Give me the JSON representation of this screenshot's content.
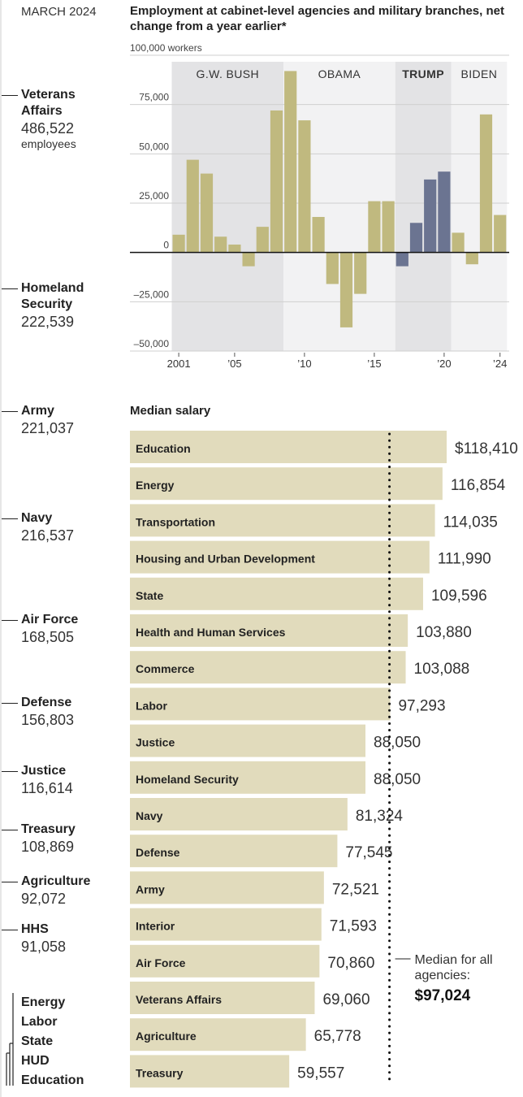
{
  "date_label": "MARCH 2024",
  "left_list": {
    "agencies": [
      {
        "name": "Veterans Affairs",
        "count": "486,522",
        "unit": "employees"
      },
      {
        "name": "Homeland Security",
        "count": "222,539"
      },
      {
        "name": "Army",
        "count": "221,037"
      },
      {
        "name": "Navy",
        "count": "216,537"
      },
      {
        "name": "Air Force",
        "count": "168,505"
      },
      {
        "name": "Defense",
        "count": "156,803"
      },
      {
        "name": "Justice",
        "count": "116,614"
      },
      {
        "name": "Treasury",
        "count": "108,869"
      },
      {
        "name": "Agriculture",
        "count": "92,072"
      },
      {
        "name": "HHS",
        "count": "91,058"
      }
    ],
    "small": [
      "Energy",
      "Labor",
      "State",
      "HUD",
      "Education"
    ]
  },
  "chart_data": [
    {
      "type": "bar",
      "title": "Employment at cabinet-level agencies and military branches, net change from a year earlier*",
      "ylabel": "100,000 workers",
      "ylim": [
        -50000,
        100000
      ],
      "yticks": [
        {
          "value": 100000,
          "label": "100,000 workers"
        },
        {
          "value": 75000,
          "label": "75,000"
        },
        {
          "value": 50000,
          "label": "50,000"
        },
        {
          "value": 25000,
          "label": "25,000"
        },
        {
          "value": 0,
          "label": "0"
        },
        {
          "value": -25000,
          "label": "–25,000"
        },
        {
          "value": -50000,
          "label": "–50,000"
        }
      ],
      "xlim": [
        2000.5,
        2024.5
      ],
      "xticks": [
        {
          "value": 2001,
          "label": "2001"
        },
        {
          "value": 2005,
          "label": "’05"
        },
        {
          "value": 2010,
          "label": "’10"
        },
        {
          "value": 2015,
          "label": "’15"
        },
        {
          "value": 2020,
          "label": "’20"
        },
        {
          "value": 2024,
          "label": "’24"
        }
      ],
      "categories": [
        2001,
        2002,
        2003,
        2004,
        2005,
        2006,
        2007,
        2008,
        2009,
        2010,
        2011,
        2012,
        2013,
        2014,
        2015,
        2016,
        2017,
        2018,
        2019,
        2020,
        2021,
        2022,
        2023,
        2024
      ],
      "values": [
        9000,
        47000,
        40000,
        8000,
        4000,
        -7000,
        13000,
        72000,
        92000,
        67000,
        18000,
        -16000,
        -38000,
        -21000,
        26000,
        26000,
        -7000,
        15000,
        37000,
        41000,
        10000,
        -6000,
        70000,
        19000
      ],
      "eras": [
        {
          "label": "G.W. BUSH",
          "start": 2001,
          "end": 2008,
          "shade": "#e3e3e5",
          "bold": false
        },
        {
          "label": "OBAMA",
          "start": 2009,
          "end": 2016,
          "shade": "#f2f2f3",
          "bold": false
        },
        {
          "label": "TRUMP",
          "start": 2017,
          "end": 2020,
          "shade": "#e3e3e5",
          "bold": true
        },
        {
          "label": "BIDEN",
          "start": 2021,
          "end": 2024,
          "shade": "#f2f2f3",
          "bold": false
        }
      ],
      "colors": {
        "bar": "#c0b97f",
        "bar_highlight": "#6b7491"
      }
    },
    {
      "type": "bar",
      "orientation": "horizontal",
      "title": "Median salary",
      "categories": [
        "Education",
        "Energy",
        "Transportation",
        "Housing and Urban Development",
        "State",
        "Health and Human Services",
        "Commerce",
        "Labor",
        "Justice",
        "Homeland Security",
        "Navy",
        "Defense",
        "Army",
        "Interior",
        "Air Force",
        "Veterans Affairs",
        "Agriculture",
        "Treasury"
      ],
      "values": [
        118410,
        116854,
        114035,
        111990,
        109596,
        103880,
        103088,
        97293,
        88050,
        88050,
        81324,
        77545,
        72521,
        71593,
        70860,
        69060,
        65778,
        59557
      ],
      "value_labels": [
        "$118,410",
        "116,854",
        "114,035",
        "111,990",
        "109,596",
        "103,880",
        "103,088",
        "97,293",
        "88,050",
        "88,050",
        "81,324",
        "77,545",
        "72,521",
        "71,593",
        "70,860",
        "69,060",
        "65,778",
        "59,557"
      ],
      "reference_line": {
        "value": 97024,
        "label_lines": [
          "Median for all",
          "agencies:"
        ],
        "value_label": "$97,024"
      },
      "colors": {
        "bar": "#e1dbbc"
      }
    }
  ]
}
